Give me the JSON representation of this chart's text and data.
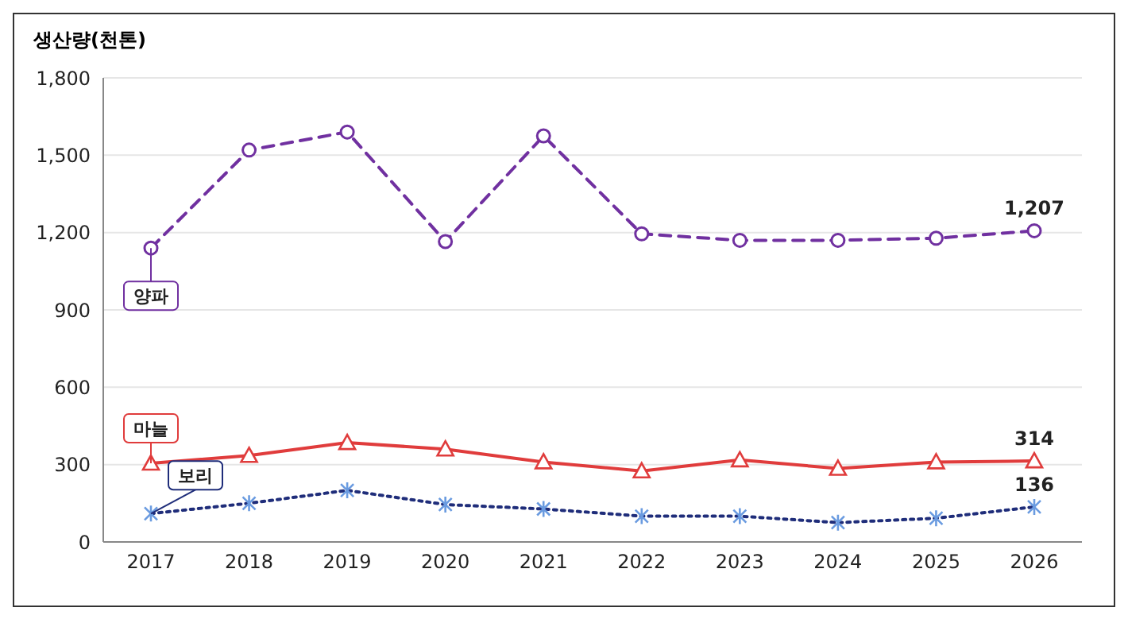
{
  "chart_data": {
    "type": "line",
    "ylabel": "생산량(천톤)",
    "categories": [
      "2017",
      "2018",
      "2019",
      "2020",
      "2021",
      "2022",
      "2023",
      "2024",
      "2025",
      "2026"
    ],
    "series": [
      {
        "name": "양파",
        "color": "#7030a0",
        "marker": "circle",
        "line_style": "dashed",
        "values": [
          1140,
          1520,
          1590,
          1165,
          1575,
          1195,
          1170,
          1170,
          1178,
          1207
        ],
        "value_labels": [
          null,
          null,
          null,
          null,
          null,
          null,
          null,
          null,
          null,
          "1,207"
        ]
      },
      {
        "name": "마늘",
        "color": "#e03c3c",
        "marker": "triangle",
        "line_style": "solid",
        "values": [
          305,
          335,
          385,
          360,
          310,
          275,
          318,
          285,
          310,
          314
        ],
        "value_labels": [
          null,
          null,
          null,
          null,
          null,
          null,
          null,
          null,
          null,
          "314"
        ]
      },
      {
        "name": "보리",
        "color": "#1f2d7a",
        "marker": "cross",
        "line_style": "dotted",
        "values": [
          110,
          150,
          200,
          145,
          128,
          100,
          100,
          75,
          92,
          136
        ],
        "value_labels": [
          null,
          null,
          null,
          null,
          null,
          null,
          null,
          null,
          null,
          "136"
        ]
      }
    ],
    "ylim": [
      0,
      1800
    ],
    "yticks": [
      0,
      300,
      600,
      900,
      {
        "value": 1200,
        "label": "1,200"
      },
      {
        "value": 1500,
        "label": "1,500"
      },
      {
        "value": 1800,
        "label": "1,800"
      }
    ],
    "grid": "y",
    "legend": "left"
  }
}
